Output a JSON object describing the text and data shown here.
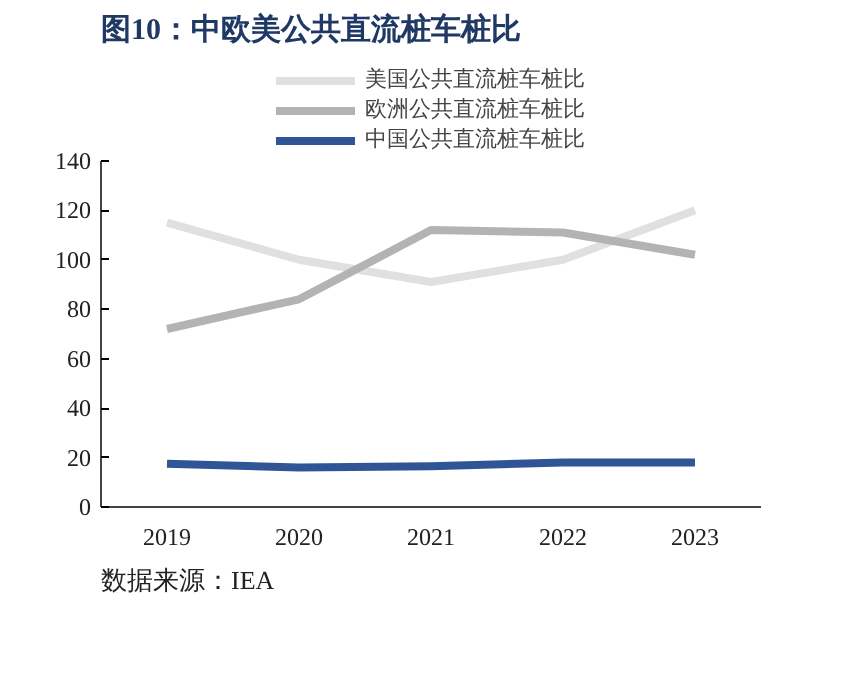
{
  "chart_data": {
    "type": "line",
    "title": "图10：中欧美公共直流桩车桩比",
    "categories": [
      "2019",
      "2020",
      "2021",
      "2022",
      "2023"
    ],
    "series": [
      {
        "name": "美国公共直流桩车桩比",
        "color": "#e0e0e0",
        "values": [
          115,
          100,
          91,
          100,
          120
        ]
      },
      {
        "name": "欧洲公共直流桩车桩比",
        "color": "#b3b3b3",
        "values": [
          72,
          84,
          112,
          111,
          102
        ]
      },
      {
        "name": "中国公共直流桩车桩比",
        "color": "#2f5597",
        "values": [
          17.5,
          16,
          16.5,
          18,
          18
        ]
      }
    ],
    "ylim": [
      0,
      140
    ],
    "yticks": [
      0,
      20,
      40,
      60,
      80,
      100,
      120,
      140
    ],
    "grid": false,
    "legend": "top",
    "marker": "none",
    "line_style": "solid",
    "annotations": [
      "数据来源：IEA"
    ]
  }
}
